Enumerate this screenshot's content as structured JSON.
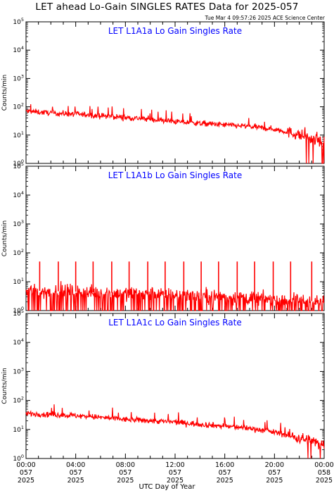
{
  "header": {
    "title": "LET ahead Lo-Gain SINGLES RATES Data for 2025-057",
    "timestamp": "Tue Mar  4 09:57:26 2025 ACE Science Center"
  },
  "chart_data": [
    {
      "type": "line",
      "title": "LET L1A1a Lo Gain Singles Rate",
      "ylabel": "Counts/min",
      "yscale": "log",
      "ylim": [
        1,
        100000
      ],
      "xlim_hours": [
        0,
        24
      ],
      "grid": false,
      "color": "#ff0000",
      "title_color": "#0000ff",
      "series": [
        {
          "x": [
            0,
            2,
            4,
            6,
            8,
            10,
            12,
            14,
            16,
            18,
            20,
            22,
            24
          ],
          "values": [
            70,
            60,
            55,
            48,
            42,
            36,
            30,
            26,
            23,
            20,
            16,
            10,
            5
          ]
        }
      ]
    },
    {
      "type": "line",
      "title": "LET L1A1b Lo Gain Singles Rate",
      "ylabel": "Counts/min",
      "yscale": "log",
      "ylim": [
        1,
        100000
      ],
      "xlim_hours": [
        0,
        24
      ],
      "grid": false,
      "color": "#ff0000",
      "title_color": "#0000ff",
      "series": [
        {
          "x": [
            0,
            4,
            8,
            12,
            16,
            20,
            24
          ],
          "values": [
            5,
            4.5,
            4,
            3.5,
            3,
            2.5,
            2
          ],
          "spikes_hours": [
            1.1,
            2.6,
            4.0,
            5.4,
            6.9,
            8.3,
            9.8,
            11.2,
            12.7,
            14.1,
            15.5,
            17.0,
            18.4,
            19.9,
            21.3,
            23.0
          ],
          "spike_value": 50
        }
      ]
    },
    {
      "type": "line",
      "title": "LET L1A1c Lo Gain Singles Rate",
      "ylabel": "Counts/min",
      "yscale": "log",
      "ylim": [
        1,
        100000
      ],
      "xlim_hours": [
        0,
        24
      ],
      "grid": false,
      "color": "#ff0000",
      "title_color": "#0000ff",
      "series": [
        {
          "x": [
            0,
            2,
            4,
            6,
            8,
            10,
            12,
            14,
            16,
            18,
            20,
            22,
            24
          ],
          "values": [
            35,
            33,
            30,
            26,
            22,
            20,
            18,
            15,
            13,
            11,
            8,
            5,
            3
          ]
        }
      ]
    }
  ],
  "y_ticks": [
    {
      "label": "10",
      "exp": "0",
      "value": 1
    },
    {
      "label": "10",
      "exp": "1",
      "value": 10
    },
    {
      "label": "10",
      "exp": "2",
      "value": 100
    },
    {
      "label": "10",
      "exp": "3",
      "value": 1000
    },
    {
      "label": "10",
      "exp": "4",
      "value": 10000
    },
    {
      "label": "10",
      "exp": "5",
      "value": 100000
    }
  ],
  "x_ticks": [
    {
      "hours": 0,
      "time": "00:00",
      "doy": "057",
      "year": "2025"
    },
    {
      "hours": 4,
      "time": "04:00",
      "doy": "057",
      "year": "2025"
    },
    {
      "hours": 8,
      "time": "08:00",
      "doy": "057",
      "year": "2025"
    },
    {
      "hours": 12,
      "time": "12:00",
      "doy": "057",
      "year": "2025"
    },
    {
      "hours": 16,
      "time": "16:00",
      "doy": "057",
      "year": "2025"
    },
    {
      "hours": 20,
      "time": "20:00",
      "doy": "057",
      "year": "2025"
    },
    {
      "hours": 24,
      "time": "00:00",
      "doy": "058",
      "year": "2025"
    }
  ],
  "xlabel": "UTC Day of Year"
}
